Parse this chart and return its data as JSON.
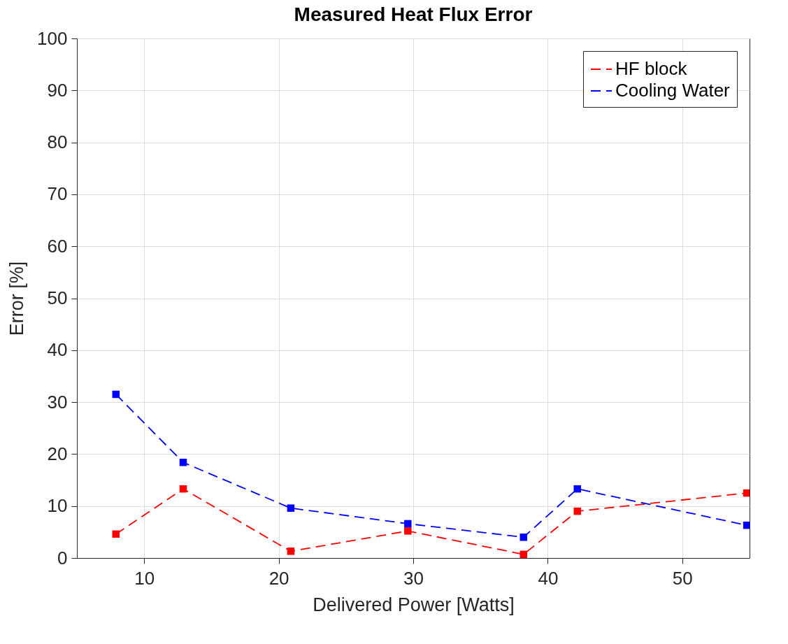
{
  "chart_data": {
    "type": "line",
    "title": "Measured Heat Flux Error",
    "xlabel": "Delivered Power [Watts]",
    "ylabel": "Error [%]",
    "x": [
      7.9,
      12.9,
      20.9,
      29.6,
      38.2,
      42.2,
      54.8
    ],
    "series": [
      {
        "name": "HF block",
        "color": "#ff0000",
        "values": [
          4.6,
          13.3,
          1.3,
          5.2,
          0.7,
          9.0,
          12.5
        ]
      },
      {
        "name": "Cooling Water",
        "color": "#0000ff",
        "values": [
          31.5,
          18.4,
          9.6,
          6.6,
          4.0,
          13.3,
          6.3
        ]
      }
    ],
    "xlim": [
      5,
      55
    ],
    "xticks": [
      10,
      20,
      30,
      40,
      50
    ],
    "ylim": [
      0,
      100
    ],
    "yticks": [
      0,
      10,
      20,
      30,
      40,
      50,
      60,
      70,
      80,
      90,
      100
    ],
    "grid": true,
    "legend": "top right",
    "marker": "square",
    "line_style": "dashed"
  }
}
